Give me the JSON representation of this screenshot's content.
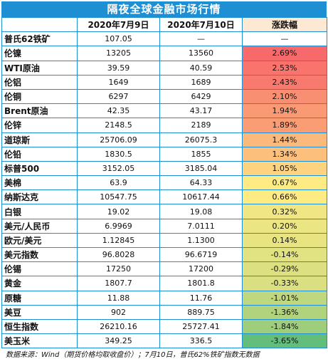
{
  "title": "隔夜全球金融市场行情",
  "headers": [
    "",
    "2020年7月9日",
    "2020年7月10日",
    "涨跌幅"
  ],
  "rows": [
    {
      "name": "普氏62铁矿",
      "d1": "107.05",
      "d2": "—",
      "chg": "—",
      "color": "#ffffff"
    },
    {
      "name": "伦镍",
      "d1": "13205",
      "d2": "13560",
      "chg": "2.69%",
      "color": "#f8696b"
    },
    {
      "name": "WTI原油",
      "d1": "39.59",
      "d2": "40.59",
      "chg": "2.53%",
      "color": "#f8746d"
    },
    {
      "name": "伦铝",
      "d1": "1649",
      "d2": "1689",
      "chg": "2.43%",
      "color": "#f87a6e"
    },
    {
      "name": "伦铜",
      "d1": "6297",
      "d2": "6429",
      "chg": "2.10%",
      "color": "#f98f72"
    },
    {
      "name": "Brent原油",
      "d1": "42.35",
      "d2": "43.17",
      "chg": "1.94%",
      "color": "#fa9a74"
    },
    {
      "name": "伦锌",
      "d1": "2148.5",
      "d2": "2189",
      "chg": "1.89%",
      "color": "#fa9d75"
    },
    {
      "name": "道琼斯",
      "d1": "25706.09",
      "d2": "26075.3",
      "chg": "1.44%",
      "color": "#fbba7b"
    },
    {
      "name": "伦铅",
      "d1": "1830.5",
      "d2": "1855",
      "chg": "1.34%",
      "color": "#fcc07c"
    },
    {
      "name": "标普500",
      "d1": "3152.05",
      "d2": "3185.04",
      "chg": "1.05%",
      "color": "#fdd380"
    },
    {
      "name": "美棉",
      "d1": "63.9",
      "d2": "64.33",
      "chg": "0.67%",
      "color": "#feeb84"
    },
    {
      "name": "纳斯达克",
      "d1": "10547.75",
      "d2": "10617.44",
      "chg": "0.66%",
      "color": "#feeb84"
    },
    {
      "name": "白银",
      "d1": "19.02",
      "d2": "19.08",
      "chg": "0.32%",
      "color": "#f0e683"
    },
    {
      "name": "美元/人民币",
      "d1": "6.9969",
      "d2": "7.0111",
      "chg": "0.20%",
      "color": "#ebe583"
    },
    {
      "name": "欧元/美元",
      "d1": "1.12845",
      "d2": "1.1300",
      "chg": "0.14%",
      "color": "#e8e482"
    },
    {
      "name": "美元指数",
      "d1": "96.8028",
      "d2": "96.6719",
      "chg": "-0.14%",
      "color": "#e1e282"
    },
    {
      "name": "伦锡",
      "d1": "17250",
      "d2": "17200",
      "chg": "-0.29%",
      "color": "#dce081"
    },
    {
      "name": "黄金",
      "d1": "1807.7",
      "d2": "1801.8",
      "chg": "-0.33%",
      "color": "#dadf81"
    },
    {
      "name": "原糖",
      "d1": "11.88",
      "d2": "11.76",
      "chg": "-1.01%",
      "color": "#bfd77f"
    },
    {
      "name": "美豆",
      "d1": "902",
      "d2": "889.75",
      "chg": "-1.36%",
      "color": "#b2d37e"
    },
    {
      "name": "恒生指数",
      "d1": "26210.16",
      "d2": "25727.41",
      "chg": "-1.84%",
      "color": "#9ecd7c"
    },
    {
      "name": "美玉米",
      "d1": "349.25",
      "d2": "336.5",
      "chg": "-3.65%",
      "color": "#63be7b"
    }
  ],
  "source": "数据来源：Wind（期货价格均取收盘价）；7月10日，普氏62%铁矿指数无数据"
}
